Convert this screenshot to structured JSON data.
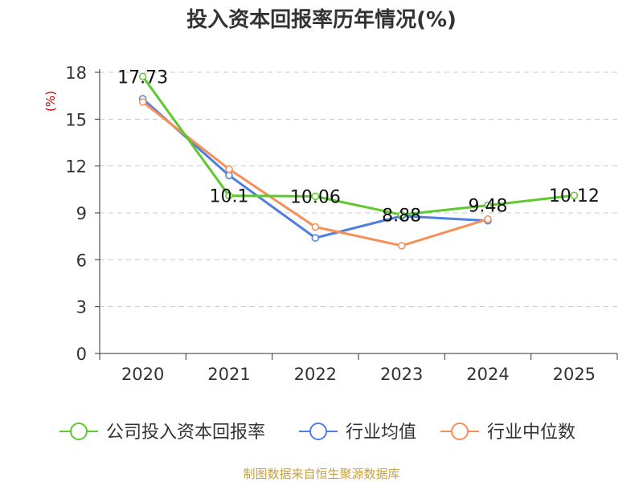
{
  "chart_data": {
    "type": "line",
    "title": "投入资本回报率历年情况(%)",
    "ylabel": "(%)",
    "xlabel": "",
    "categories": [
      "2020",
      "2021",
      "2022",
      "2023",
      "2024",
      "2025"
    ],
    "ylim": [
      0,
      18
    ],
    "yticks": [
      0,
      3,
      6,
      9,
      12,
      15,
      18
    ],
    "grid": "horizontal-dashed",
    "legend_position": "bottom",
    "series": [
      {
        "name": "公司投入资本回报率",
        "color": "#5ec82e",
        "values": [
          17.73,
          10.1,
          10.06,
          8.88,
          9.48,
          10.12
        ],
        "labels": [
          "17.73",
          "10.1",
          "10.06",
          "8.88",
          "9.48",
          "10.12"
        ]
      },
      {
        "name": "行业均值",
        "color": "#4f7fde",
        "values": [
          16.3,
          11.4,
          7.4,
          8.8,
          8.5,
          null
        ]
      },
      {
        "name": "行业中位数",
        "color": "#f68f58",
        "values": [
          16.1,
          11.8,
          8.1,
          6.9,
          8.6,
          null
        ]
      }
    ]
  },
  "source": "制图数据来自恒生聚源数据库"
}
